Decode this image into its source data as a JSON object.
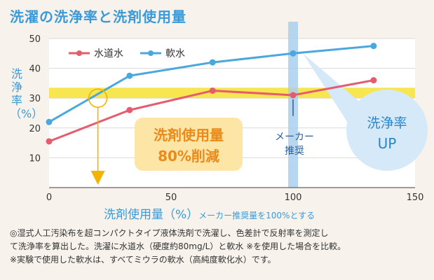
{
  "title": "洗濯の洗浄率と洗剤使用量",
  "chart_data": {
    "type": "line",
    "ylabel": "洗浄率（%）",
    "xlabel": "洗剤使用量（%）",
    "xlabel_note": "メーカー推奨量を100%とする",
    "xlim": [
      0,
      150
    ],
    "ylim": [
      0,
      50
    ],
    "xticks": [
      0,
      50,
      100,
      150
    ],
    "yticks": [
      10,
      20,
      30,
      40,
      50
    ],
    "grid": true,
    "legend_position": "top-left",
    "series": [
      {
        "name": "水道水",
        "color": "#e35d6f",
        "x": [
          0,
          33,
          67,
          100,
          133
        ],
        "y": [
          15.5,
          26,
          32.5,
          31,
          36
        ]
      },
      {
        "name": "軟水",
        "color": "#4aa8df",
        "x": [
          0,
          33,
          67,
          100,
          133
        ],
        "y": [
          22,
          37.5,
          42,
          45,
          47.5
        ]
      }
    ],
    "highlight_band": {
      "y": [
        30,
        33.5
      ],
      "color": "#f7e233"
    },
    "vertical_band": {
      "x": 100,
      "label": "メーカー推奨",
      "color": "#a9cfee"
    },
    "annotations": {
      "reduction": "洗剤使用量\n80%削減",
      "up": "洗浄率\nUP"
    }
  },
  "footnote": [
    "◎湿式人工汚染布を超コンパクトタイプ液体洗剤で洗濯し、色差計で反射率を測定し",
    "て洗浄率を算出した。洗濯に水道水（硬度約80mg/L）と軟水 ※を使用した場合を比較。",
    "※実験で使用した軟水は、すべてミウラの軟水（高純度軟化水）です。"
  ]
}
